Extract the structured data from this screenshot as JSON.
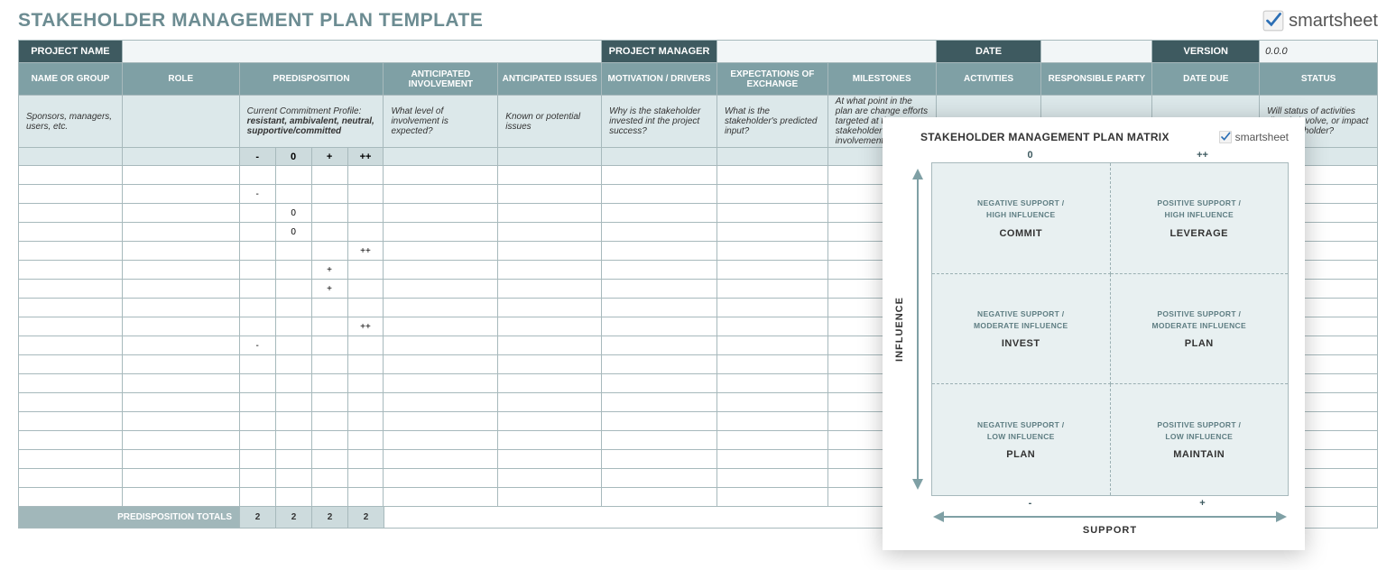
{
  "page": {
    "title": "STAKEHOLDER MANAGEMENT PLAN TEMPLATE",
    "brand": "smartsheet"
  },
  "meta": {
    "project_name_label": "PROJECT NAME",
    "project_name_value": "",
    "project_manager_label": "PROJECT MANAGER",
    "project_manager_value": "",
    "date_label": "DATE",
    "date_value": "",
    "version_label": "VERSION",
    "version_value": "0.0.0"
  },
  "columns": {
    "name": "NAME OR GROUP",
    "role": "ROLE",
    "predisposition": "PREDISPOSITION",
    "anticip": "ANTICIPATED INVOLVEMENT",
    "issues": "ANTICIPATED ISSUES",
    "motiv": "MOTIVATION / DRIVERS",
    "expect": "EXPECTATIONS OF EXCHANGE",
    "miles": "MILESTONES",
    "activ": "ACTIVITIES",
    "resp": "RESPONSIBLE PARTY",
    "due": "DATE DUE",
    "status": "STATUS"
  },
  "desc": {
    "name": "Sponsors, managers, users, etc.",
    "role": "",
    "predisposition_line1": "Current Commitment Profile:",
    "predisposition_line2": "resistant, ambivalent, neutral, supportive/committed",
    "anticip": "What level of involvement is expected?",
    "issues": "Known or potential issues",
    "motiv": "Why is the stakeholder invested int the project success?",
    "expect": "What is the stakeholder's predicted input?",
    "miles": "At what point in the plan are change efforts targeted at the stakeholder due, or involvement expected?",
    "activ": "",
    "resp": "",
    "due": "",
    "status": "Will status of activities directly involve, or impact the stakeholder?"
  },
  "pred_labels": [
    "-",
    "0",
    "+",
    "++"
  ],
  "rows": [
    {
      "p": [
        "",
        "",
        "",
        ""
      ]
    },
    {
      "p": [
        "-",
        "",
        "",
        ""
      ]
    },
    {
      "p": [
        "",
        "0",
        "",
        ""
      ]
    },
    {
      "p": [
        "",
        "0",
        "",
        ""
      ]
    },
    {
      "p": [
        "",
        "",
        "",
        "++"
      ]
    },
    {
      "p": [
        "",
        "",
        "+",
        ""
      ]
    },
    {
      "p": [
        "",
        "",
        "+",
        ""
      ]
    },
    {
      "p": [
        "",
        "",
        "",
        ""
      ]
    },
    {
      "p": [
        "",
        "",
        "",
        "++"
      ]
    },
    {
      "p": [
        "-",
        "",
        "",
        ""
      ]
    },
    {
      "p": [
        "",
        "",
        "",
        ""
      ]
    },
    {
      "p": [
        "",
        "",
        "",
        ""
      ]
    },
    {
      "p": [
        "",
        "",
        "",
        ""
      ]
    },
    {
      "p": [
        "",
        "",
        "",
        ""
      ]
    },
    {
      "p": [
        "",
        "",
        "",
        ""
      ]
    },
    {
      "p": [
        "",
        "",
        "",
        ""
      ]
    },
    {
      "p": [
        "",
        "",
        "",
        ""
      ]
    },
    {
      "p": [
        "",
        "",
        "",
        ""
      ]
    }
  ],
  "totals": {
    "label": "PREDISPOSITION TOTALS",
    "values": [
      "2",
      "2",
      "2",
      "2"
    ]
  },
  "matrix": {
    "title": "STAKEHOLDER MANAGEMENT PLAN MATRIX",
    "brand": "smartsheet",
    "y_axis": "INFLUENCE",
    "x_axis": "SUPPORT",
    "top_ticks": [
      "0",
      "++"
    ],
    "bot_ticks": [
      "-",
      "+"
    ],
    "cells": [
      [
        {
          "sub1": "NEGATIVE SUPPORT /",
          "sub2": "HIGH INFLUENCE",
          "main": "COMMIT"
        },
        {
          "sub1": "POSITIVE SUPPORT /",
          "sub2": "HIGH INFLUENCE",
          "main": "LEVERAGE"
        }
      ],
      [
        {
          "sub1": "NEGATIVE SUPPORT /",
          "sub2": "MODERATE INFLUENCE",
          "main": "INVEST"
        },
        {
          "sub1": "POSITIVE SUPPORT /",
          "sub2": "MODERATE INFLUENCE",
          "main": "PLAN"
        }
      ],
      [
        {
          "sub1": "NEGATIVE SUPPORT /",
          "sub2": "LOW INFLUENCE",
          "main": "PLAN"
        },
        {
          "sub1": "POSITIVE SUPPORT /",
          "sub2": "LOW INFLUENCE",
          "main": "MAINTAIN"
        }
      ]
    ]
  },
  "colors": {
    "header_dark": "#3e5a60",
    "header_mid": "#7fa0a5",
    "desc_bg": "#dce8ea",
    "sub_bg": "#cddbdd",
    "matrix_bg": "#e8f0f1",
    "border": "#a7b9bc"
  }
}
